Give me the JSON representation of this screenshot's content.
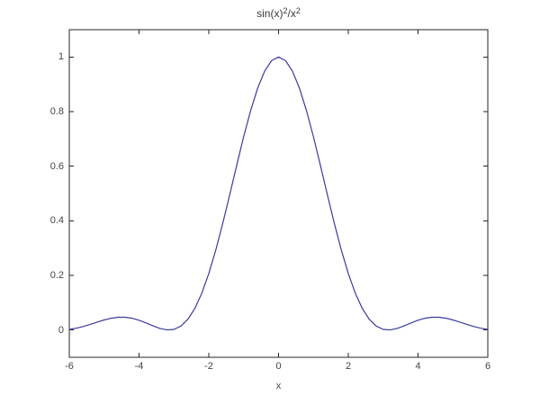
{
  "chart_data": {
    "type": "line",
    "title": "sin(x)^2/x^2",
    "title_rich": [
      {
        "t": "sin(x)"
      },
      {
        "t": "2"
      },
      {
        "t": "/x"
      },
      {
        "t": "2"
      }
    ],
    "xlabel": "x",
    "xlim": [
      -6,
      6
    ],
    "ylim": [
      -0.1,
      1.1
    ],
    "xticks": [
      -6,
      -4,
      -2,
      0,
      2,
      4,
      6
    ],
    "xtick_labels": [
      "-6",
      "-4",
      "-2",
      "0",
      "2",
      "4",
      "6"
    ],
    "yticks": [
      0,
      0.2,
      0.4,
      0.6,
      0.8,
      1
    ],
    "ytick_labels": [
      "0",
      "0.2",
      "0.4",
      "0.6",
      "0.8",
      "1"
    ],
    "grid": false,
    "line_color": "#3b3b9e",
    "axis_color": "#262626",
    "text_color": "#454545",
    "background": "#ffffff",
    "series": [
      {
        "name": "sin(x)^2/x^2",
        "x": [
          -6,
          -5.8,
          -5.6,
          -5.4,
          -5.2,
          -5,
          -4.8,
          -4.6,
          -4.4,
          -4.2,
          -4,
          -3.8,
          -3.6,
          -3.4,
          -3.2,
          -3,
          -2.8,
          -2.6,
          -2.4,
          -2.2,
          -2,
          -1.8,
          -1.6,
          -1.4,
          -1.2,
          -1,
          -0.8,
          -0.6,
          -0.4,
          -0.2,
          0,
          0.2,
          0.4,
          0.6,
          0.8,
          1,
          1.2,
          1.4,
          1.6,
          1.8,
          2,
          2.2,
          2.4,
          2.6,
          2.8,
          3,
          3.2,
          3.4,
          3.6,
          3.8,
          4,
          4.2,
          4.4,
          4.6,
          4.8,
          5,
          5.2,
          5.4,
          5.6,
          5.8,
          6
        ],
        "y": [
          0.00217,
          0.00642,
          0.01271,
          0.02048,
          0.02886,
          0.03678,
          0.04307,
          0.04667,
          0.04677,
          0.04306,
          0.0358,
          0.02593,
          0.01511,
          0.00565,
          0.00033,
          0.00221,
          0.01431,
          0.03931,
          0.07921,
          0.13506,
          0.2067,
          0.29271,
          0.39029,
          0.49546,
          0.60326,
          0.70807,
          0.80406,
          0.88561,
          0.94779,
          0.98674,
          1,
          0.98674,
          0.94779,
          0.88561,
          0.80406,
          0.70807,
          0.60326,
          0.49546,
          0.39029,
          0.29271,
          0.2067,
          0.13506,
          0.07921,
          0.03931,
          0.01431,
          0.00221,
          0.00033,
          0.00565,
          0.01511,
          0.02593,
          0.0358,
          0.04306,
          0.04677,
          0.04667,
          0.04307,
          0.03678,
          0.02886,
          0.02048,
          0.01271,
          0.00642,
          0.00217
        ]
      }
    ]
  }
}
